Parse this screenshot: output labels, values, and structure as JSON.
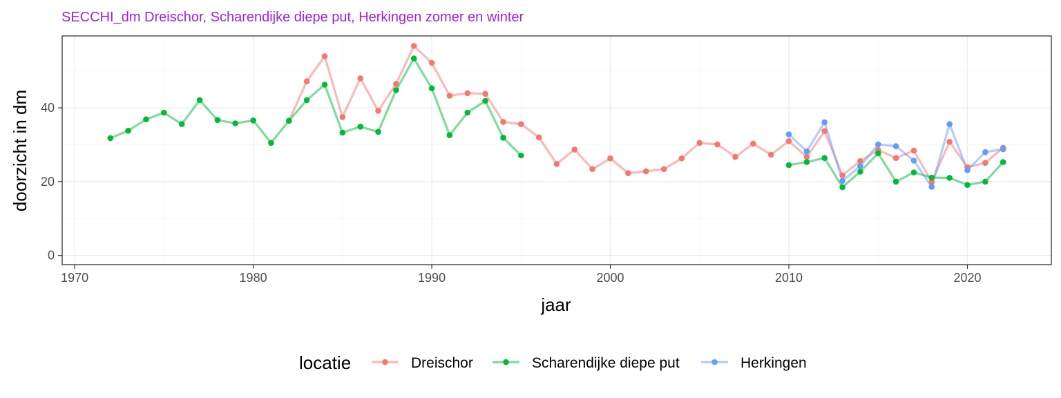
{
  "chart_data": {
    "type": "line",
    "title": "SECCHI_dm Dreischor, Scharendijke diepe put, Herkingen zomer en winter",
    "xlabel": "jaar",
    "ylabel": "doorzicht in dm",
    "xlim": [
      1969.3,
      2024.7
    ],
    "ylim": [
      -2.5,
      59.5
    ],
    "x_ticks": [
      1970,
      1980,
      1990,
      2000,
      2010,
      2020
    ],
    "y_ticks": [
      0,
      20,
      40
    ],
    "grid": true,
    "legend": {
      "title": "locatie",
      "position": "bottom"
    },
    "series": [
      {
        "name": "Dreischor",
        "color": "#f8766d",
        "x": [
          1982,
          1983,
          1984,
          1985,
          1986,
          1987,
          1988,
          1989,
          1990,
          1991,
          1992,
          1993,
          1994,
          1995,
          1996,
          1997,
          1998,
          1999,
          2000,
          2001,
          2002,
          2003,
          2004,
          2005,
          2006,
          2007,
          2008,
          2009,
          2010,
          2011,
          2012,
          2013,
          2014,
          2015,
          2016,
          2017,
          2018,
          2019,
          2020,
          2021,
          2022
        ],
        "y": [
          36.5,
          47.2,
          54.0,
          37.5,
          48.0,
          39.2,
          46.5,
          56.8,
          52.2,
          43.3,
          44.0,
          43.8,
          36.2,
          35.6,
          32.0,
          24.8,
          28.7,
          23.4,
          26.3,
          22.3,
          22.8,
          23.4,
          26.3,
          30.5,
          30.1,
          26.7,
          30.3,
          27.3,
          31.0,
          26.7,
          33.7,
          21.7,
          25.6,
          28.6,
          26.4,
          28.4,
          19.9,
          30.8,
          23.9,
          25.1,
          29.2
        ]
      },
      {
        "name": "Scharendijke diepe put",
        "color": "#00ba38",
        "x": [
          1972,
          1973,
          1974,
          1975,
          1976,
          1977,
          1978,
          1979,
          1980,
          1981,
          1982,
          1983,
          1984,
          1985,
          1986,
          1987,
          1988,
          1989,
          1990,
          1991,
          1992,
          1993,
          1994,
          1995,
          2010,
          2011,
          2012,
          2013,
          2014,
          2015,
          2016,
          2017,
          2018,
          2019,
          2020,
          2021,
          2022
        ],
        "y": [
          31.8,
          33.8,
          36.9,
          38.7,
          35.6,
          42.1,
          36.7,
          35.8,
          36.6,
          30.5,
          36.5,
          42.1,
          46.3,
          33.3,
          34.9,
          33.5,
          44.8,
          53.4,
          45.3,
          32.6,
          38.7,
          41.9,
          31.9,
          27.1,
          24.5,
          25.3,
          26.4,
          18.5,
          22.7,
          27.7,
          20.0,
          22.5,
          21.1,
          21.0,
          19.1,
          20.0,
          25.3
        ]
      },
      {
        "name": "Herkingen",
        "color": "#619cff",
        "x": [
          2010,
          2011,
          2012,
          2013,
          2014,
          2015,
          2016,
          2017,
          2018,
          2019,
          2020,
          2021,
          2022
        ],
        "y": [
          32.8,
          28.2,
          36.1,
          20.2,
          24.2,
          30.1,
          29.6,
          25.7,
          18.6,
          35.6,
          23.1,
          28.0,
          28.8
        ]
      }
    ]
  }
}
